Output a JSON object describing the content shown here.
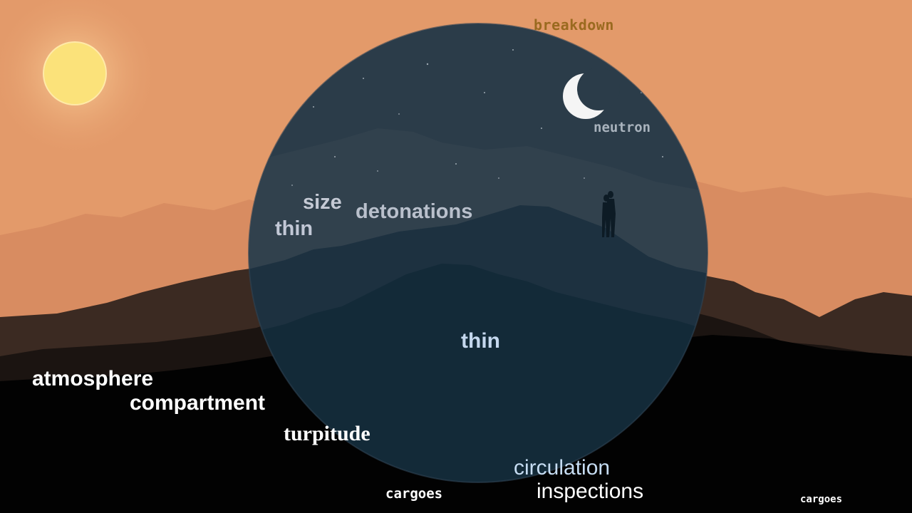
{
  "scene": {
    "sky_color": "#e39a6a",
    "sun_color": "#fbe27a",
    "orb_color": "#1f3444",
    "moon_color": "#f5f5f5",
    "foreground_color": "#020202"
  },
  "words": {
    "breakdown": "breakdown",
    "neutron": "neutron",
    "size": "size",
    "detonations": "detonations",
    "thin_upper": "thin",
    "thin_lower": "thin",
    "atmosphere": "atmosphere",
    "compartment": "compartment",
    "turpitude": "turpitude",
    "circulation": "circulation",
    "inspections": "inspections",
    "cargoes_left": "cargoes",
    "cargoes_right": "cargoes"
  }
}
